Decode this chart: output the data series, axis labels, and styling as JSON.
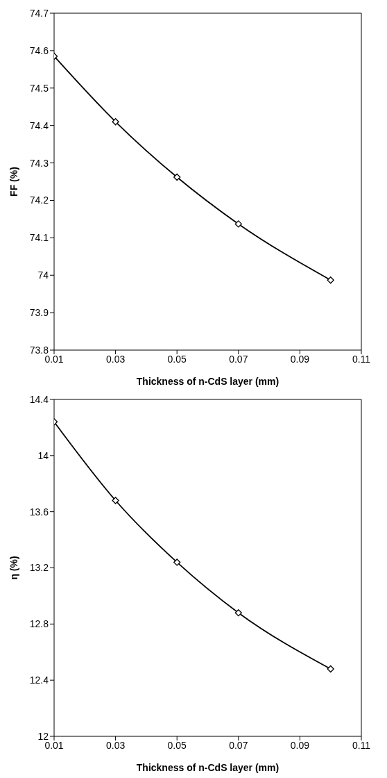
{
  "chart_data": [
    {
      "type": "line",
      "xlabel": "Thickness of n-CdS layer (mm)",
      "ylabel": "FF (%)",
      "x": [
        0.01,
        0.03,
        0.05,
        0.07,
        0.1
      ],
      "series": [
        {
          "color": "#000000",
          "values": [
            74.585,
            74.41,
            74.262,
            74.137,
            73.987
          ]
        }
      ],
      "xlim": [
        0.01,
        0.11
      ],
      "xticks": [
        0.01,
        0.03,
        0.05,
        0.07,
        0.09,
        0.11
      ],
      "ylim": [
        73.8,
        74.7
      ],
      "yticks": [
        73.8,
        73.9,
        74,
        74.1,
        74.2,
        74.3,
        74.4,
        74.5,
        74.6,
        74.7
      ],
      "marker": "diamond",
      "line_style": "solid",
      "grid": false,
      "legend": false
    },
    {
      "type": "line",
      "xlabel": "Thickness of n-CdS layer (mm)",
      "ylabel": "η (%)",
      "x": [
        0.01,
        0.03,
        0.05,
        0.07,
        0.1
      ],
      "series": [
        {
          "color": "#000000",
          "values": [
            14.24,
            13.68,
            13.24,
            12.88,
            12.48
          ]
        }
      ],
      "xlim": [
        0.01,
        0.11
      ],
      "xticks": [
        0.01,
        0.03,
        0.05,
        0.07,
        0.09,
        0.11
      ],
      "ylim": [
        12,
        14.4
      ],
      "yticks": [
        12,
        12.4,
        12.8,
        13.2,
        13.6,
        14,
        14.4
      ],
      "marker": "diamond",
      "line_style": "solid",
      "grid": false,
      "legend": false
    }
  ]
}
